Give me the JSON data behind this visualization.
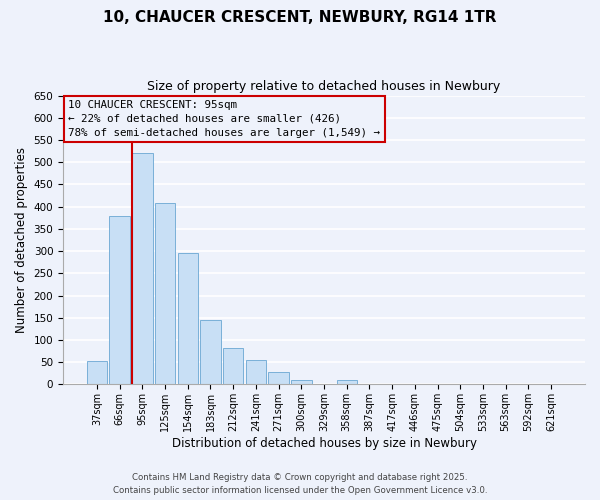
{
  "title": "10, CHAUCER CRESCENT, NEWBURY, RG14 1TR",
  "subtitle": "Size of property relative to detached houses in Newbury",
  "xlabel": "Distribution of detached houses by size in Newbury",
  "ylabel": "Number of detached properties",
  "categories": [
    "37sqm",
    "66sqm",
    "95sqm",
    "125sqm",
    "154sqm",
    "183sqm",
    "212sqm",
    "241sqm",
    "271sqm",
    "300sqm",
    "329sqm",
    "358sqm",
    "387sqm",
    "417sqm",
    "446sqm",
    "475sqm",
    "504sqm",
    "533sqm",
    "563sqm",
    "592sqm",
    "621sqm"
  ],
  "values": [
    52,
    378,
    521,
    408,
    296,
    144,
    83,
    55,
    28,
    10,
    0,
    10,
    0,
    0,
    0,
    0,
    0,
    0,
    0,
    0,
    0
  ],
  "bar_color": "#c8dff5",
  "bar_edge_color": "#7ab0d8",
  "highlight_index": 2,
  "highlight_line_color": "#cc0000",
  "ylim": [
    0,
    650
  ],
  "yticks": [
    0,
    50,
    100,
    150,
    200,
    250,
    300,
    350,
    400,
    450,
    500,
    550,
    600,
    650
  ],
  "annotation_title": "10 CHAUCER CRESCENT: 95sqm",
  "annotation_line1": "← 22% of detached houses are smaller (426)",
  "annotation_line2": "78% of semi-detached houses are larger (1,549) →",
  "annotation_box_edge": "#cc0000",
  "footer1": "Contains HM Land Registry data © Crown copyright and database right 2025.",
  "footer2": "Contains public sector information licensed under the Open Government Licence v3.0.",
  "background_color": "#eef2fb",
  "grid_color": "#ffffff"
}
